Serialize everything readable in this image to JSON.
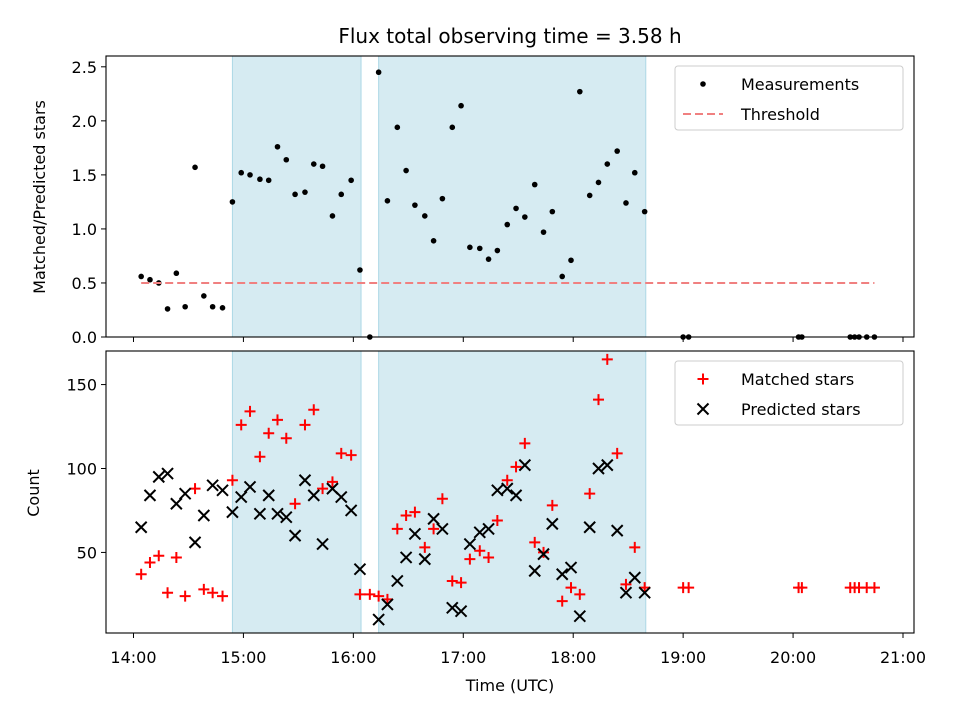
{
  "chart_data": [
    {
      "type": "scatter",
      "title": "Flux total observing time = 3.58 h",
      "xlabel": "",
      "ylabel": "Matched/Predicted stars",
      "xlim": [
        13.75,
        21.1
      ],
      "ylim": [
        0,
        2.6
      ],
      "yticks": [
        0.0,
        0.5,
        1.0,
        1.5,
        2.0,
        2.5
      ],
      "ytick_labels": [
        "0.0",
        "0.5",
        "1.0",
        "1.5",
        "2.0",
        "2.5"
      ],
      "shaded_intervals": [
        [
          14.9,
          16.07
        ],
        [
          16.23,
          18.66
        ]
      ],
      "legend_position": "upper right",
      "series": [
        {
          "name": "Measurements",
          "marker": "dot",
          "color": "#000000",
          "x": [
            14.07,
            14.15,
            14.23,
            14.31,
            14.39,
            14.47,
            14.56,
            14.64,
            14.72,
            14.81,
            14.9,
            14.98,
            15.06,
            15.15,
            15.23,
            15.31,
            15.39,
            15.47,
            15.56,
            15.64,
            15.72,
            15.81,
            15.89,
            15.98,
            16.06,
            16.15,
            16.23,
            16.31,
            16.4,
            16.48,
            16.56,
            16.65,
            16.73,
            16.81,
            16.9,
            16.98,
            17.06,
            17.15,
            17.23,
            17.31,
            17.4,
            17.48,
            17.56,
            17.65,
            17.73,
            17.81,
            17.9,
            17.98,
            18.06,
            18.15,
            18.23,
            18.31,
            18.4,
            18.48,
            18.56,
            18.65,
            19.0,
            19.05,
            20.05,
            20.08,
            20.52,
            20.56,
            20.6,
            20.67,
            20.74
          ],
          "y": [
            0.56,
            0.53,
            0.5,
            0.26,
            0.59,
            0.28,
            1.57,
            0.38,
            0.28,
            0.27,
            1.25,
            1.52,
            1.5,
            1.46,
            1.45,
            1.76,
            1.64,
            1.32,
            1.34,
            1.6,
            1.58,
            1.12,
            1.32,
            1.45,
            0.62,
            0.0,
            2.45,
            1.26,
            1.94,
            1.54,
            1.22,
            1.12,
            0.89,
            1.28,
            1.94,
            2.14,
            0.83,
            0.82,
            0.72,
            0.8,
            1.04,
            1.19,
            1.11,
            1.41,
            0.97,
            1.16,
            0.56,
            0.71,
            2.27,
            1.31,
            1.43,
            1.6,
            1.72,
            1.24,
            1.52,
            1.16,
            0.0,
            0.0,
            0.0,
            0.0,
            0.0,
            0.0,
            0.0,
            0.0,
            0.0
          ]
        },
        {
          "name": "Threshold",
          "marker": "dashed-line",
          "color": "#f08080",
          "x": [
            14.07,
            20.74
          ],
          "y": [
            0.5,
            0.5
          ]
        }
      ]
    },
    {
      "type": "scatter",
      "title": "",
      "xlabel": "Time (UTC)",
      "ylabel": "Count",
      "xlim": [
        13.75,
        21.1
      ],
      "ylim": [
        2,
        170
      ],
      "yticks": [
        50,
        100,
        150
      ],
      "ytick_labels": [
        "50",
        "100",
        "150"
      ],
      "xticks": [
        14,
        15,
        16,
        17,
        18,
        19,
        20,
        21
      ],
      "xtick_labels": [
        "14:00",
        "15:00",
        "16:00",
        "17:00",
        "18:00",
        "19:00",
        "20:00",
        "21:00"
      ],
      "shaded_intervals": [
        [
          14.9,
          16.07
        ],
        [
          16.23,
          18.66
        ]
      ],
      "legend_position": "upper right",
      "series": [
        {
          "name": "Matched stars",
          "marker": "plus",
          "color": "#ff0000",
          "x": [
            14.07,
            14.15,
            14.23,
            14.31,
            14.39,
            14.47,
            14.56,
            14.64,
            14.72,
            14.81,
            14.9,
            14.98,
            15.06,
            15.15,
            15.23,
            15.31,
            15.39,
            15.47,
            15.56,
            15.64,
            15.72,
            15.81,
            15.89,
            15.98,
            16.06,
            16.15,
            16.23,
            16.31,
            16.4,
            16.48,
            16.56,
            16.65,
            16.73,
            16.81,
            16.9,
            16.98,
            17.06,
            17.15,
            17.23,
            17.31,
            17.4,
            17.48,
            17.56,
            17.65,
            17.73,
            17.81,
            17.9,
            17.98,
            18.06,
            18.15,
            18.23,
            18.31,
            18.4,
            18.48,
            18.56,
            18.65,
            19.0,
            19.05,
            20.05,
            20.08,
            20.52,
            20.56,
            20.6,
            20.67,
            20.74
          ],
          "y": [
            37,
            44,
            48,
            26,
            47,
            24,
            88,
            28,
            26,
            24,
            93,
            126,
            134,
            107,
            121,
            129,
            118,
            79,
            126,
            135,
            88,
            92,
            109,
            108,
            25,
            25,
            24,
            22,
            64,
            72,
            74,
            53,
            64,
            82,
            33,
            32,
            46,
            51,
            47,
            69,
            93,
            101,
            115,
            56,
            50,
            78,
            21,
            29,
            25,
            85,
            141,
            165,
            109,
            31,
            53,
            29,
            29,
            29,
            29,
            29,
            29,
            29,
            29,
            29,
            29
          ]
        },
        {
          "name": "Predicted stars",
          "marker": "x",
          "color": "#000000",
          "x": [
            14.07,
            14.15,
            14.23,
            14.31,
            14.39,
            14.47,
            14.56,
            14.64,
            14.72,
            14.81,
            14.9,
            14.98,
            15.06,
            15.15,
            15.23,
            15.31,
            15.39,
            15.47,
            15.56,
            15.64,
            15.72,
            15.81,
            15.89,
            15.98,
            16.06,
            16.23,
            16.31,
            16.4,
            16.48,
            16.56,
            16.65,
            16.73,
            16.81,
            16.9,
            16.98,
            17.06,
            17.15,
            17.23,
            17.31,
            17.4,
            17.48,
            17.56,
            17.65,
            17.73,
            17.81,
            17.9,
            17.98,
            18.06,
            18.15,
            18.23,
            18.31,
            18.4,
            18.48,
            18.56,
            18.65
          ],
          "y": [
            65,
            84,
            95,
            97,
            79,
            85,
            56,
            72,
            90,
            87,
            74,
            83,
            89,
            73,
            84,
            73,
            71,
            60,
            93,
            84,
            55,
            88,
            83,
            75,
            40,
            10,
            19,
            33,
            47,
            61,
            46,
            70,
            64,
            17,
            15,
            55,
            62,
            64,
            87,
            88,
            84,
            102,
            39,
            49,
            67,
            37,
            41,
            12,
            65,
            100,
            102,
            63,
            26,
            35,
            26
          ]
        }
      ]
    }
  ]
}
